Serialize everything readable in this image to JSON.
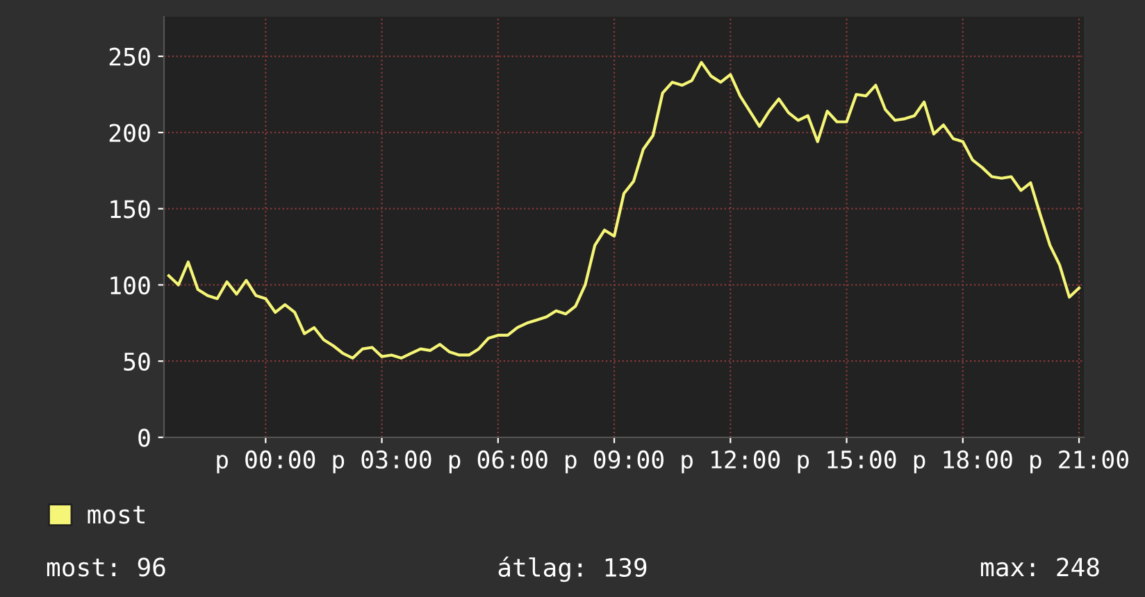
{
  "chart_data": {
    "type": "line",
    "categories": [
      null,
      null,
      null,
      null,
      null,
      null,
      null,
      null,
      null,
      null,
      "p 00:00",
      null,
      null,
      null,
      null,
      null,
      null,
      null,
      null,
      null,
      null,
      null,
      "p 03:00",
      null,
      null,
      null,
      null,
      null,
      null,
      null,
      null,
      null,
      null,
      null,
      "p 06:00",
      null,
      null,
      null,
      null,
      null,
      null,
      null,
      null,
      null,
      null,
      null,
      "p 09:00",
      null,
      null,
      null,
      null,
      null,
      null,
      null,
      null,
      null,
      null,
      null,
      "p 12:00",
      null,
      null,
      null,
      null,
      null,
      null,
      null,
      null,
      null,
      null,
      null,
      "p 15:00",
      null,
      null,
      null,
      null,
      null,
      null,
      null,
      null,
      null,
      null,
      null,
      "p 18:00",
      null,
      null,
      null,
      null,
      null,
      null,
      null,
      null,
      null,
      null,
      null,
      "p 21:00"
    ],
    "series": [
      {
        "name": "most",
        "color": "#f5f577",
        "values": [
          106,
          100,
          115,
          97,
          93,
          91,
          102,
          94,
          103,
          93,
          91,
          82,
          87,
          82,
          68,
          72,
          64,
          60,
          55,
          52,
          58,
          59,
          53,
          54,
          52,
          55,
          58,
          57,
          61,
          56,
          54,
          54,
          58,
          65,
          67,
          67,
          72,
          75,
          77,
          79,
          83,
          81,
          86,
          100,
          126,
          136,
          132,
          160,
          168,
          189,
          198,
          226,
          233,
          231,
          234,
          246,
          237,
          233,
          238,
          224,
          214,
          204,
          214,
          222,
          213,
          208,
          211,
          194,
          214,
          207,
          207,
          225,
          224,
          231,
          215,
          208,
          209,
          211,
          220,
          199,
          205,
          196,
          194,
          182,
          177,
          171,
          170,
          171,
          162,
          167,
          146,
          126,
          113,
          92,
          98
        ]
      }
    ],
    "ylim": [
      0,
      276
    ],
    "yticks": [
      0,
      50,
      100,
      150,
      200,
      250
    ],
    "grid": true,
    "legend": "bottom left",
    "marker": "none",
    "line_style": "solid",
    "annotations": [
      "most: 96",
      "átlag: 139",
      "max: 248"
    ]
  }
}
